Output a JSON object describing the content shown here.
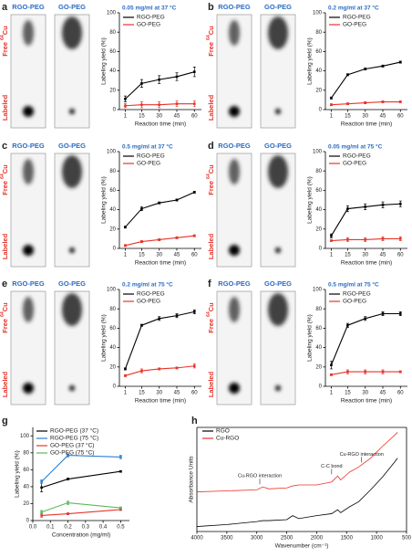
{
  "chart_data": [
    {
      "type": "line",
      "panel": "a",
      "title": "0.05 mg/ml at 37 °C",
      "lane_labels": [
        "RGO-PEG",
        "GO-PEG"
      ],
      "free_label": {
        "text": "Free",
        "superscript": "64",
        "element": "Cu"
      },
      "labeled_label": "Labeled",
      "xlabel": "Reaction time (min)",
      "ylabel": "Labeling yield (%)",
      "x": [
        1,
        15,
        30,
        45,
        60
      ],
      "xlim": [
        -4,
        66
      ],
      "xticks": [
        1,
        15,
        30,
        45,
        60
      ],
      "ylim": [
        0,
        100
      ],
      "yticks": [
        0,
        20,
        40,
        60,
        80,
        100
      ],
      "series": [
        {
          "name": "RGO-PEG",
          "color": "#000000",
          "values": [
            11,
            27,
            31,
            34,
            39
          ],
          "errors": [
            3,
            4,
            4,
            4,
            5
          ]
        },
        {
          "name": "GO-PEG",
          "color": "#e8342a",
          "values": [
            4,
            5,
            5,
            6,
            6
          ],
          "errors": [
            2,
            3,
            3,
            3,
            3
          ]
        }
      ]
    },
    {
      "type": "line",
      "panel": "b",
      "title": "0.2 mg/ml at 37 °C",
      "lane_labels": [
        "RGO-PEG",
        "GO-PEG"
      ],
      "free_label": {
        "text": "Free",
        "superscript": "64",
        "element": "Cu"
      },
      "labeled_label": "Labeled",
      "xlabel": "Reaction time (min)",
      "ylabel": "Labeling yield (%)",
      "x": [
        1,
        15,
        30,
        45,
        60
      ],
      "xlim": [
        -4,
        66
      ],
      "xticks": [
        1,
        15,
        30,
        45,
        60
      ],
      "ylim": [
        0,
        100
      ],
      "yticks": [
        0,
        20,
        40,
        60,
        80,
        100
      ],
      "series": [
        {
          "name": "RGO-PEG",
          "color": "#000000",
          "values": [
            12,
            36,
            42,
            45,
            49
          ],
          "errors": [
            1,
            1,
            1,
            1,
            1
          ]
        },
        {
          "name": "GO-PEG",
          "color": "#e8342a",
          "values": [
            5,
            6,
            7,
            8,
            8
          ],
          "errors": [
            1,
            1,
            1,
            1,
            1
          ]
        }
      ]
    },
    {
      "type": "line",
      "panel": "c",
      "title": "0.5 mg/ml at 37 °C",
      "lane_labels": [
        "RGO-PEG",
        "GO-PEG"
      ],
      "free_label": {
        "text": "Free",
        "superscript": "64",
        "element": "Cu"
      },
      "labeled_label": "Labeled",
      "xlabel": "Reaction time (min)",
      "ylabel": "Labeling yield (%)",
      "x": [
        1,
        15,
        30,
        45,
        60
      ],
      "xlim": [
        -4,
        66
      ],
      "xticks": [
        1,
        15,
        30,
        45,
        60
      ],
      "ylim": [
        0,
        100
      ],
      "yticks": [
        0,
        20,
        40,
        60,
        80,
        100
      ],
      "series": [
        {
          "name": "RGO-PEG",
          "color": "#000000",
          "values": [
            22,
            41,
            47,
            50,
            58
          ],
          "errors": [
            1,
            2,
            1,
            1,
            1
          ]
        },
        {
          "name": "GO-PEG",
          "color": "#e8342a",
          "values": [
            3,
            7,
            9,
            11,
            13
          ],
          "errors": [
            1,
            1,
            1,
            1,
            1
          ]
        }
      ]
    },
    {
      "type": "line",
      "panel": "d",
      "title": "0.05 mg/ml at 75 °C",
      "lane_labels": [
        "RGO-PEG",
        "GO-PEG"
      ],
      "free_label": {
        "text": "Free",
        "superscript": "64",
        "element": "Cu"
      },
      "labeled_label": "Labeled",
      "xlabel": "Reaction time (min)",
      "ylabel": "Labeling yield (%)",
      "x": [
        1,
        15,
        30,
        45,
        60
      ],
      "xlim": [
        -4,
        66
      ],
      "xticks": [
        1,
        15,
        30,
        45,
        60
      ],
      "ylim": [
        0,
        100
      ],
      "yticks": [
        0,
        20,
        40,
        60,
        80,
        100
      ],
      "series": [
        {
          "name": "RGO-PEG",
          "color": "#000000",
          "values": [
            13,
            41,
            43,
            45,
            46
          ],
          "errors": [
            2,
            3,
            3,
            3,
            3
          ]
        },
        {
          "name": "GO-PEG",
          "color": "#e8342a",
          "values": [
            8,
            9,
            9,
            10,
            10
          ],
          "errors": [
            1,
            2,
            2,
            2,
            2
          ]
        }
      ]
    },
    {
      "type": "line",
      "panel": "e",
      "title": "0.2 mg/ml at 75 °C",
      "lane_labels": [
        "RGO-PEG",
        "GO-PEG"
      ],
      "free_label": {
        "text": "Free",
        "superscript": "64",
        "element": "Cu"
      },
      "labeled_label": "Labeled",
      "xlabel": "Reaction time (min)",
      "ylabel": "Labeling yield (%)",
      "x": [
        1,
        15,
        30,
        45,
        60
      ],
      "xlim": [
        -4,
        66
      ],
      "xticks": [
        1,
        15,
        30,
        45,
        60
      ],
      "ylim": [
        0,
        100
      ],
      "yticks": [
        0,
        20,
        40,
        60,
        80,
        100
      ],
      "series": [
        {
          "name": "RGO-PEG",
          "color": "#000000",
          "values": [
            18,
            63,
            70,
            73,
            77
          ],
          "errors": [
            1,
            1,
            2,
            2,
            2
          ]
        },
        {
          "name": "GO-PEG",
          "color": "#e8342a",
          "values": [
            11,
            16,
            18,
            19,
            21
          ],
          "errors": [
            1,
            2,
            1,
            1,
            2
          ]
        }
      ]
    },
    {
      "type": "line",
      "panel": "f",
      "title": "0.5 mg/ml at 75 °C",
      "lane_labels": [
        "RGO-PEG",
        "GO-PEG"
      ],
      "free_label": {
        "text": "Free",
        "superscript": "64",
        "element": "Cu"
      },
      "labeled_label": "Labeled",
      "xlabel": "Reaction time (min)",
      "ylabel": "Labeling yield (%)",
      "x": [
        1,
        15,
        30,
        45,
        60
      ],
      "xlim": [
        -4,
        66
      ],
      "xticks": [
        1,
        15,
        30,
        45,
        60
      ],
      "ylim": [
        0,
        100
      ],
      "yticks": [
        0,
        20,
        40,
        60,
        80,
        100
      ],
      "series": [
        {
          "name": "RGO-PEG",
          "color": "#000000",
          "values": [
            22,
            63,
            70,
            75,
            75
          ],
          "errors": [
            4,
            2,
            2,
            2,
            2
          ]
        },
        {
          "name": "GO-PEG",
          "color": "#e8342a",
          "values": [
            12,
            15,
            15,
            15,
            15
          ],
          "errors": [
            1,
            2,
            2,
            2,
            1
          ]
        }
      ]
    },
    {
      "type": "line",
      "panel": "g",
      "xlabel": "Concentration (mg/ml)",
      "ylabel": "Labeling yield (%)",
      "x": [
        0.05,
        0.2,
        0.5
      ],
      "xlim": [
        0,
        0.55
      ],
      "xticks": [
        {
          "value": 0,
          "label": "0.0"
        },
        0.1,
        0.2,
        0.3,
        0.4,
        0.5
      ],
      "ylim": [
        0,
        110
      ],
      "yticks": [
        0,
        20,
        40,
        60,
        80,
        100
      ],
      "series": [
        {
          "name": "RGO-PEG (37 °C)",
          "color": "#000000",
          "values": [
            39,
            49,
            58
          ],
          "errors": [
            5,
            1,
            1
          ]
        },
        {
          "name": "RGO-PEG (75 °C)",
          "color": "#2b7fd6",
          "values": [
            46,
            77,
            75
          ],
          "errors": [
            2,
            2,
            2
          ]
        },
        {
          "name": "GO-PEG (37 °C)",
          "color": "#e8342a",
          "values": [
            6,
            8,
            13
          ],
          "errors": [
            2,
            1,
            1
          ]
        },
        {
          "name": "GO-PEG (75 °C)",
          "color": "#5cb85c",
          "values": [
            10,
            21,
            15
          ],
          "errors": [
            2,
            2,
            1
          ]
        }
      ]
    },
    {
      "type": "spectrum",
      "panel": "h",
      "xlabel": "Wavenumber (cm⁻¹)",
      "ylabel": "Absorbance Units",
      "annotations": [
        "Cu-RGO interaction",
        "C-C bond",
        "Cu-RGO interaction"
      ],
      "x": [
        4000,
        3500,
        3000,
        2900,
        2800,
        2500,
        2400,
        2300,
        2000,
        1750,
        1650,
        1600,
        1450,
        1300,
        1100,
        900,
        700,
        650
      ],
      "xlim": [
        4000,
        500
      ],
      "xticks": [
        4000,
        3500,
        3000,
        2500,
        2000,
        1500,
        1000,
        500
      ],
      "ylim": [
        0,
        1.05
      ],
      "series": [
        {
          "name": "RGO",
          "color": "#000000",
          "values": [
            0.05,
            0.07,
            0.1,
            0.11,
            0.11,
            0.12,
            0.16,
            0.13,
            0.16,
            0.18,
            0.22,
            0.19,
            0.25,
            0.3,
            0.42,
            0.55,
            0.7,
            0.74
          ]
        },
        {
          "name": "Cu-RGO",
          "color": "#e8342a",
          "values": [
            0.4,
            0.41,
            0.42,
            0.45,
            0.43,
            0.44,
            0.46,
            0.47,
            0.47,
            0.5,
            0.56,
            0.52,
            0.6,
            0.65,
            0.74,
            0.86,
            0.97,
            1.0
          ]
        }
      ]
    }
  ]
}
